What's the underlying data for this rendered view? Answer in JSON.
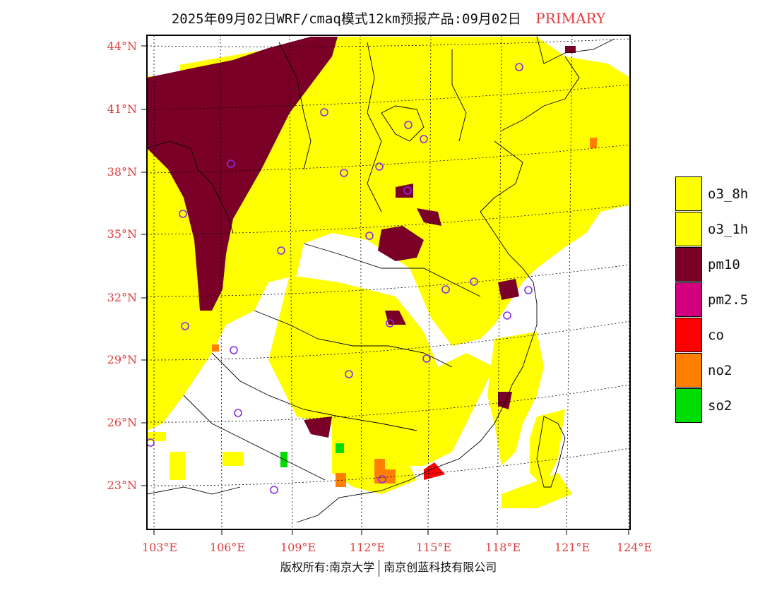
{
  "header": {
    "title": "2025年09月02日WRF/cmaq模式12km预报产品:09月02日",
    "tag": "PRIMARY",
    "tag_color": "#e03c3c"
  },
  "axes": {
    "lat_labels": [
      "44°N",
      "41°N",
      "38°N",
      "35°N",
      "32°N",
      "29°N",
      "26°N",
      "23°N"
    ],
    "lon_labels": [
      "103°E",
      "106°E",
      "109°E",
      "112°E",
      "115°E",
      "118°E",
      "121°E",
      "124°E"
    ],
    "label_color": "#e03c3c"
  },
  "legend": {
    "items": [
      {
        "label": "o3_8h",
        "color": "#ffff00"
      },
      {
        "label": "o3_1h",
        "color": "#ffff00"
      },
      {
        "label": "pm10",
        "color": "#7a0028"
      },
      {
        "label": "pm2.5",
        "color": "#d2007f"
      },
      {
        "label": "co",
        "color": "#ff0000"
      },
      {
        "label": "no2",
        "color": "#ff8000"
      },
      {
        "label": "so2",
        "color": "#00dd00"
      }
    ]
  },
  "footer": {
    "left": "版权所有:南京大学",
    "right": "南京创蓝科技有限公司"
  }
}
